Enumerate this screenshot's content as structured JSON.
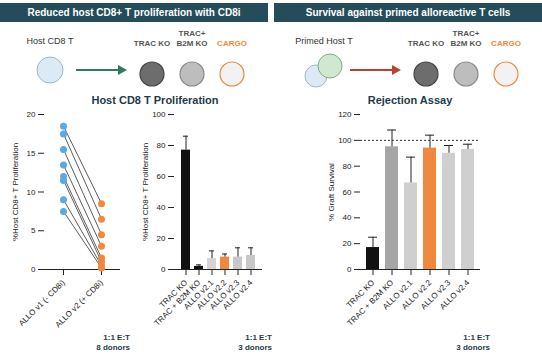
{
  "panels": [
    {
      "header": "Reduced host CD8+ T proliferation with CD8i",
      "source_label": "Host CD8 T",
      "cells": [
        [
          "TRAC KO"
        ],
        [
          "TRAC+",
          "B2M KO"
        ],
        [
          "CARGO"
        ]
      ],
      "subtitle": "Host CD8 T Proliferation"
    },
    {
      "header": "Survival against primed alloreactive T cells",
      "source_label": "Primed Host T",
      "cells": [
        [
          "TRAC KO"
        ],
        [
          "TRAC+",
          "B2M KO"
        ],
        [
          "CARGO"
        ]
      ],
      "subtitle": "Rejection Assay"
    }
  ],
  "chart_data": [
    {
      "type": "paired_dot",
      "y_label": "%Host CD8+ T Proliferation",
      "categories": [
        "ALLO v1 (- CD8i)",
        "ALLO v2 (+ CD8i)"
      ],
      "colors": [
        "#5aa9e6",
        "#f0883e"
      ],
      "points": [
        [
          18.5,
          8.5
        ],
        [
          17.5,
          6.5
        ],
        [
          15.5,
          4.5
        ],
        [
          13.5,
          3.0
        ],
        [
          12.0,
          1.5
        ],
        [
          11.5,
          1.0
        ],
        [
          9.0,
          0.5
        ],
        [
          7.5,
          0.2
        ]
      ],
      "ylim": [
        0,
        20
      ],
      "yticks": [
        0,
        5,
        10,
        15,
        20
      ],
      "annotations": [
        "1:1 E:T",
        "8 donors"
      ]
    },
    {
      "type": "bar",
      "y_label": "%Host CD8+ T Proliferation",
      "categories": [
        "TRAC KO",
        "TRAC + B2M KO",
        "ALLO v2.1",
        "ALLO v2.2",
        "ALLO v2.3",
        "ALLO v2.4"
      ],
      "values": [
        77,
        2,
        7,
        8,
        8,
        9
      ],
      "errors": [
        9,
        1,
        5,
        2,
        6,
        5
      ],
      "colors": [
        "#111111",
        "#111111",
        "#d4d4d4",
        "#f0883e",
        "#c8c8c8",
        "#c8c8c8"
      ],
      "ylim": [
        0,
        100
      ],
      "yticks": [
        0,
        20,
        40,
        60,
        80,
        100
      ],
      "annotations": [
        "1:1 E:T",
        "3 donors"
      ]
    },
    {
      "type": "bar",
      "y_label": "% Graft Survival",
      "categories": [
        "TRAC KO",
        "TRAC + B2M KO",
        "ALLO v2.1",
        "ALLO v2.2",
        "ALLO v2.3",
        "ALLO v2.4"
      ],
      "values": [
        17,
        95,
        67,
        94,
        90,
        93
      ],
      "errors": [
        8,
        13,
        20,
        10,
        6,
        4
      ],
      "colors": [
        "#111111",
        "#a6a6a6",
        "#cfcfcf",
        "#f0883e",
        "#cfcfcf",
        "#cfcfcf"
      ],
      "ylim": [
        0,
        120
      ],
      "yticks": [
        0,
        20,
        40,
        60,
        80,
        100,
        120
      ],
      "reference_lines": [
        100
      ],
      "annotations": [
        "1:1 E:T",
        "3 donors"
      ]
    }
  ]
}
